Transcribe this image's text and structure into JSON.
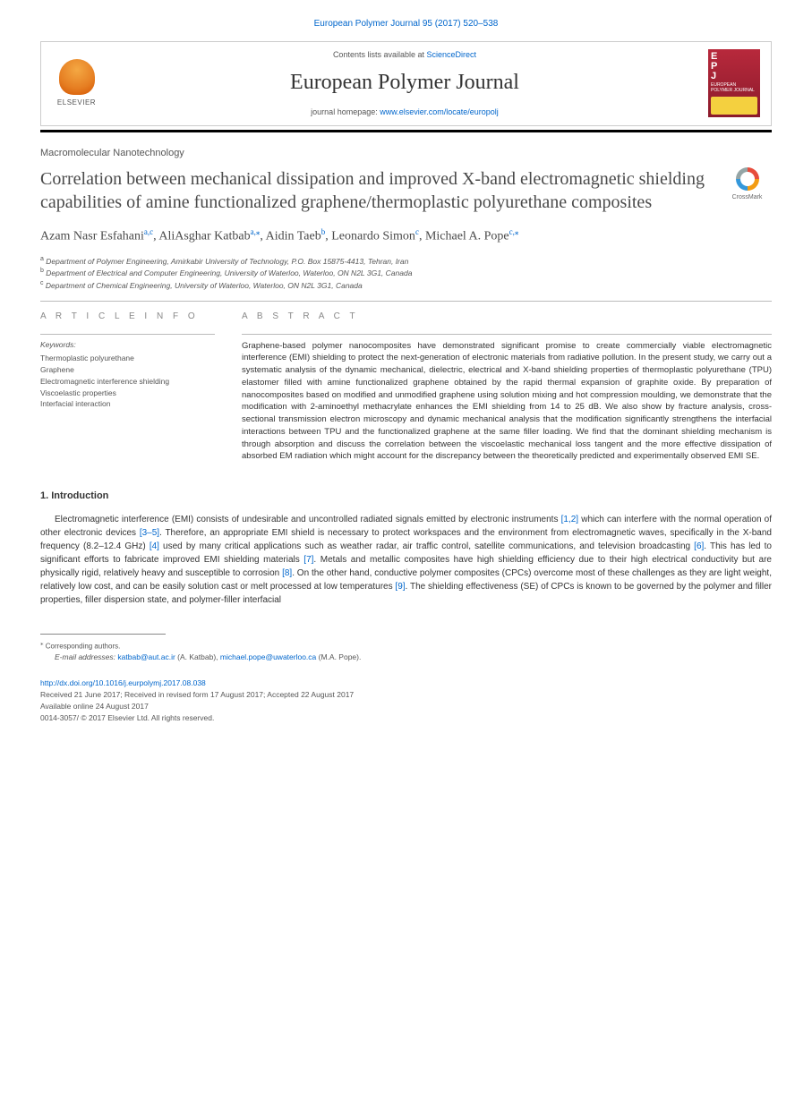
{
  "running_head": {
    "journal": "European Polymer Journal 95 (2017) 520–538"
  },
  "masthead": {
    "publisher": "ELSEVIER",
    "contents_label": "Contents lists available at",
    "contents_link": "ScienceDirect",
    "journal_name": "European Polymer Journal",
    "homepage_label": "journal homepage:",
    "homepage_url": "www.elsevier.com/locate/europolj",
    "cover_logo_top": "E",
    "cover_logo_mid": "P",
    "cover_logo_bot": "J",
    "cover_title": "EUROPEAN POLYMER JOURNAL"
  },
  "article": {
    "type": "Macromolecular Nanotechnology",
    "title": "Correlation between mechanical dissipation and improved X-band electromagnetic shielding capabilities of amine functionalized graphene/thermoplastic polyurethane composites",
    "crossmark_label": "CrossMark"
  },
  "authors": {
    "a1_name": "Azam Nasr Esfahani",
    "a1_aff": "a,c",
    "a2_name": "AliAsghar Katbab",
    "a2_aff": "a,",
    "a2_corr": "⁎",
    "a3_name": "Aidin Taeb",
    "a3_aff": "b",
    "a4_name": "Leonardo Simon",
    "a4_aff": "c",
    "a5_name": "Michael A. Pope",
    "a5_aff": "c,",
    "a5_corr": "⁎"
  },
  "affiliations": {
    "a": "Department of Polymer Engineering, Amirkabir University of Technology, P.O. Box 15875-4413, Tehran, Iran",
    "b": "Department of Electrical and Computer Engineering, University of Waterloo, Waterloo, ON N2L 3G1, Canada",
    "c": "Department of Chemical Engineering, University of Waterloo, Waterloo, ON N2L 3G1, Canada"
  },
  "info": {
    "header": "A R T I C L E  I N F O",
    "keywords_label": "Keywords:",
    "keywords": [
      "Thermoplastic polyurethane",
      "Graphene",
      "Electromagnetic interference shielding",
      "Viscoelastic properties",
      "Interfacial interaction"
    ]
  },
  "abstract": {
    "header": "A B S T R A C T",
    "text": "Graphene-based polymer nanocomposites have demonstrated significant promise to create commercially viable electromagnetic interference (EMI) shielding to protect the next-generation of electronic materials from radiative pollution. In the present study, we carry out a systematic analysis of the dynamic mechanical, dielectric, electrical and X-band shielding properties of thermoplastic polyurethane (TPU) elastomer filled with amine functionalized graphene obtained by the rapid thermal expansion of graphite oxide. By preparation of nanocomposites based on modified and unmodified graphene using solution mixing and hot compression moulding, we demonstrate that the modification with 2-aminoethyl methacrylate enhances the EMI shielding from 14 to 25 dB. We also show by fracture analysis, cross-sectional transmission electron microscopy and dynamic mechanical analysis that the modification significantly strengthens the interfacial interactions between TPU and the functionalized graphene at the same filler loading. We find that the dominant shielding mechanism is through absorption and discuss the correlation between the viscoelastic mechanical loss tangent and the more effective dissipation of absorbed EM radiation which might account for the discrepancy between the theoretically predicted and experimentally observed EMI SE."
  },
  "introduction": {
    "header": "1. Introduction",
    "p1_a": "Electromagnetic interference (EMI) consists of undesirable and uncontrolled radiated signals emitted by electronic instruments ",
    "ref1": "[1,2]",
    "p1_b": " which can interfere with the normal operation of other electronic devices ",
    "ref2": "[3–5]",
    "p1_c": ". Therefore, an appropriate EMI shield is necessary to protect workspaces and the environment from electromagnetic waves, specifically in the X-band frequency (8.2–12.4 GHz) ",
    "ref3": "[4]",
    "p1_d": " used by many critical applications such as weather radar, air traffic control, satellite communications, and television broadcasting ",
    "ref4": "[6]",
    "p1_e": ". This has led to significant efforts to fabricate improved EMI shielding materials ",
    "ref5": "[7]",
    "p1_f": ". Metals and metallic composites have high shielding efficiency due to their high electrical conductivity but are physically rigid, relatively heavy and susceptible to corrosion ",
    "ref6": "[8]",
    "p1_g": ". On the other hand, conductive polymer composites (CPCs) overcome most of these challenges as they are light weight, relatively low cost, and can be easily solution cast or melt processed at low temperatures ",
    "ref7": "[9]",
    "p1_h": ". The shielding effectiveness (SE) of CPCs is known to be governed by the polymer and filler properties, filler dispersion state, and polymer-filler interfacial"
  },
  "footer": {
    "corr_label": "Corresponding authors.",
    "email_label": "E-mail addresses:",
    "email1": "katbab@aut.ac.ir",
    "email1_name": " (A. Katbab), ",
    "email2": "michael.pope@uwaterloo.ca",
    "email2_name": " (M.A. Pope).",
    "doi": "http://dx.doi.org/10.1016/j.eurpolymj.2017.08.038",
    "received": "Received 21 June 2017; Received in revised form 17 August 2017; Accepted 22 August 2017",
    "available": "Available online 24 August 2017",
    "copyright": "0014-3057/ © 2017 Elsevier Ltd. All rights reserved."
  },
  "colors": {
    "link": "#0066cc",
    "text": "#333333",
    "muted": "#555555",
    "cover": "#b8293c"
  }
}
